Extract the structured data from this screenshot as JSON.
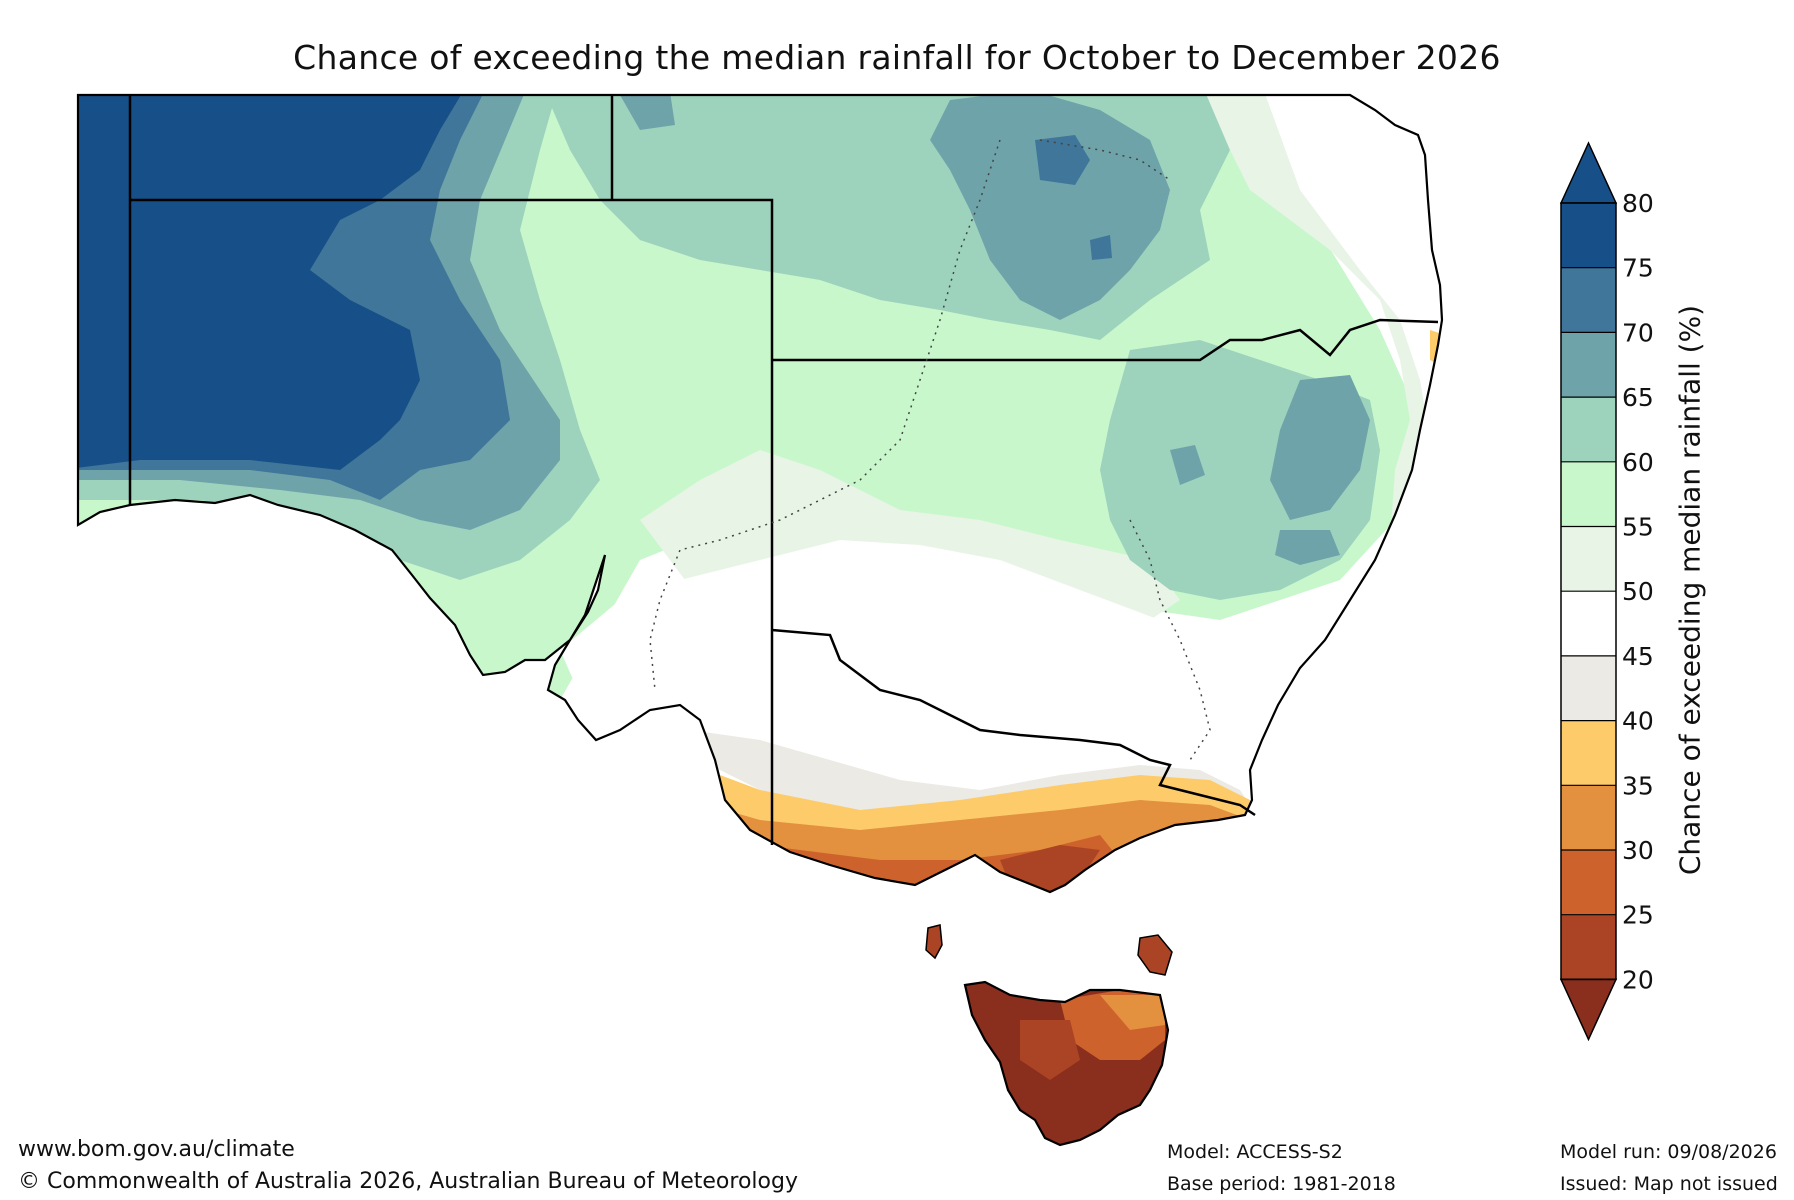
{
  "title": "Chance of exceeding the median rainfall for October to December 2026",
  "colorbar": {
    "label": "Chance of exceeding median rainfall (%)",
    "ticks": [
      "80",
      "75",
      "70",
      "65",
      "60",
      "55",
      "50",
      "45",
      "40",
      "35",
      "30",
      "25",
      "20"
    ],
    "colors": [
      "#175088",
      "#3f769a",
      "#6ea3aa",
      "#9dd3bd",
      "#c8f7cb",
      "#e8f4e6",
      "#ffffff",
      "#eceae5",
      "#fdcb6a",
      "#e3913f",
      "#cd622d",
      "#ab4424",
      "#8a2e1d"
    ],
    "extend_top_color": "#175088",
    "extend_bottom_color": "#8a2e1d"
  },
  "footer": {
    "website": "www.bom.gov.au/climate",
    "copyright": "© Commonwealth of Australia 2026, Australian Bureau of Meteorology",
    "model": "Model: ACCESS-S2",
    "base_period": "Base period: 1981-2018",
    "model_run": "Model run: 09/08/2026",
    "issued": "Issued: Map not issued"
  }
}
